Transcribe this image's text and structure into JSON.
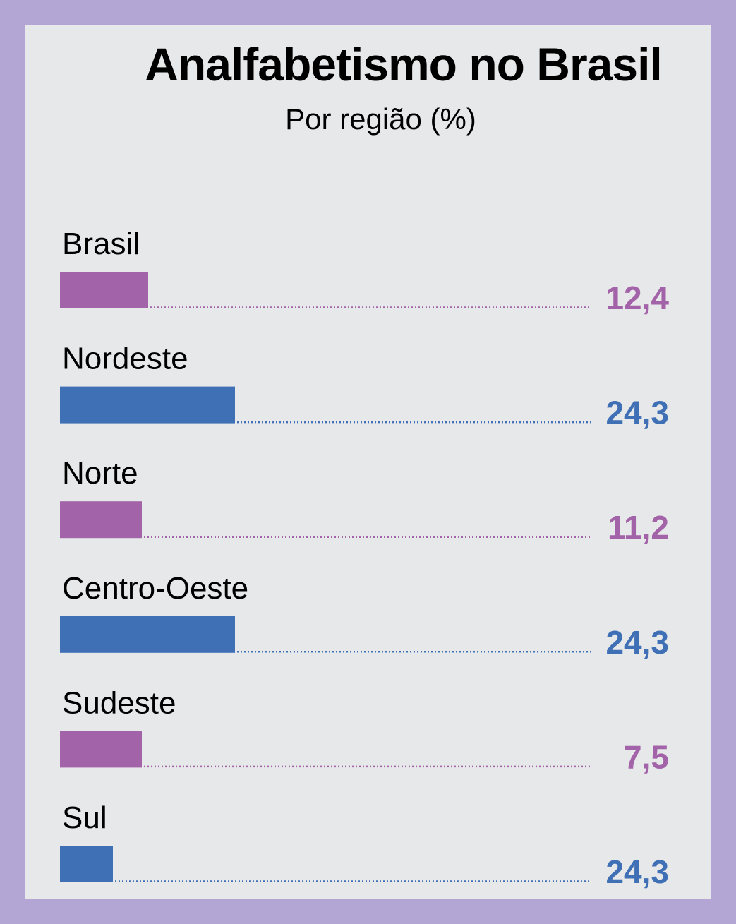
{
  "colors": {
    "frame": "#b3a6d4",
    "panel": "#e7e8e9",
    "purple": "#a363a8",
    "blue": "#3f6fb5"
  },
  "chart_data": {
    "type": "bar",
    "orientation": "horizontal",
    "title": "Analfabetismo no Brasil",
    "subtitle": "Por região (%)",
    "categories": [
      "Brasil",
      "Nordeste",
      "Norte",
      "Centro-Oeste",
      "Sudeste",
      "Sul"
    ],
    "values": [
      12.4,
      24.3,
      11.2,
      24.3,
      7.5,
      24.3
    ],
    "value_labels": [
      "12,4",
      "24,3",
      "11,2",
      "24,3",
      "7,5",
      "24,3"
    ],
    "bar_fill": [
      0.151,
      0.3,
      0.141,
      0.3,
      0.141,
      0.091
    ],
    "bar_colors": [
      "#a363a8",
      "#3f6fb5",
      "#a363a8",
      "#3f6fb5",
      "#a363a8",
      "#3f6fb5"
    ],
    "grid": false,
    "legend": "none"
  }
}
